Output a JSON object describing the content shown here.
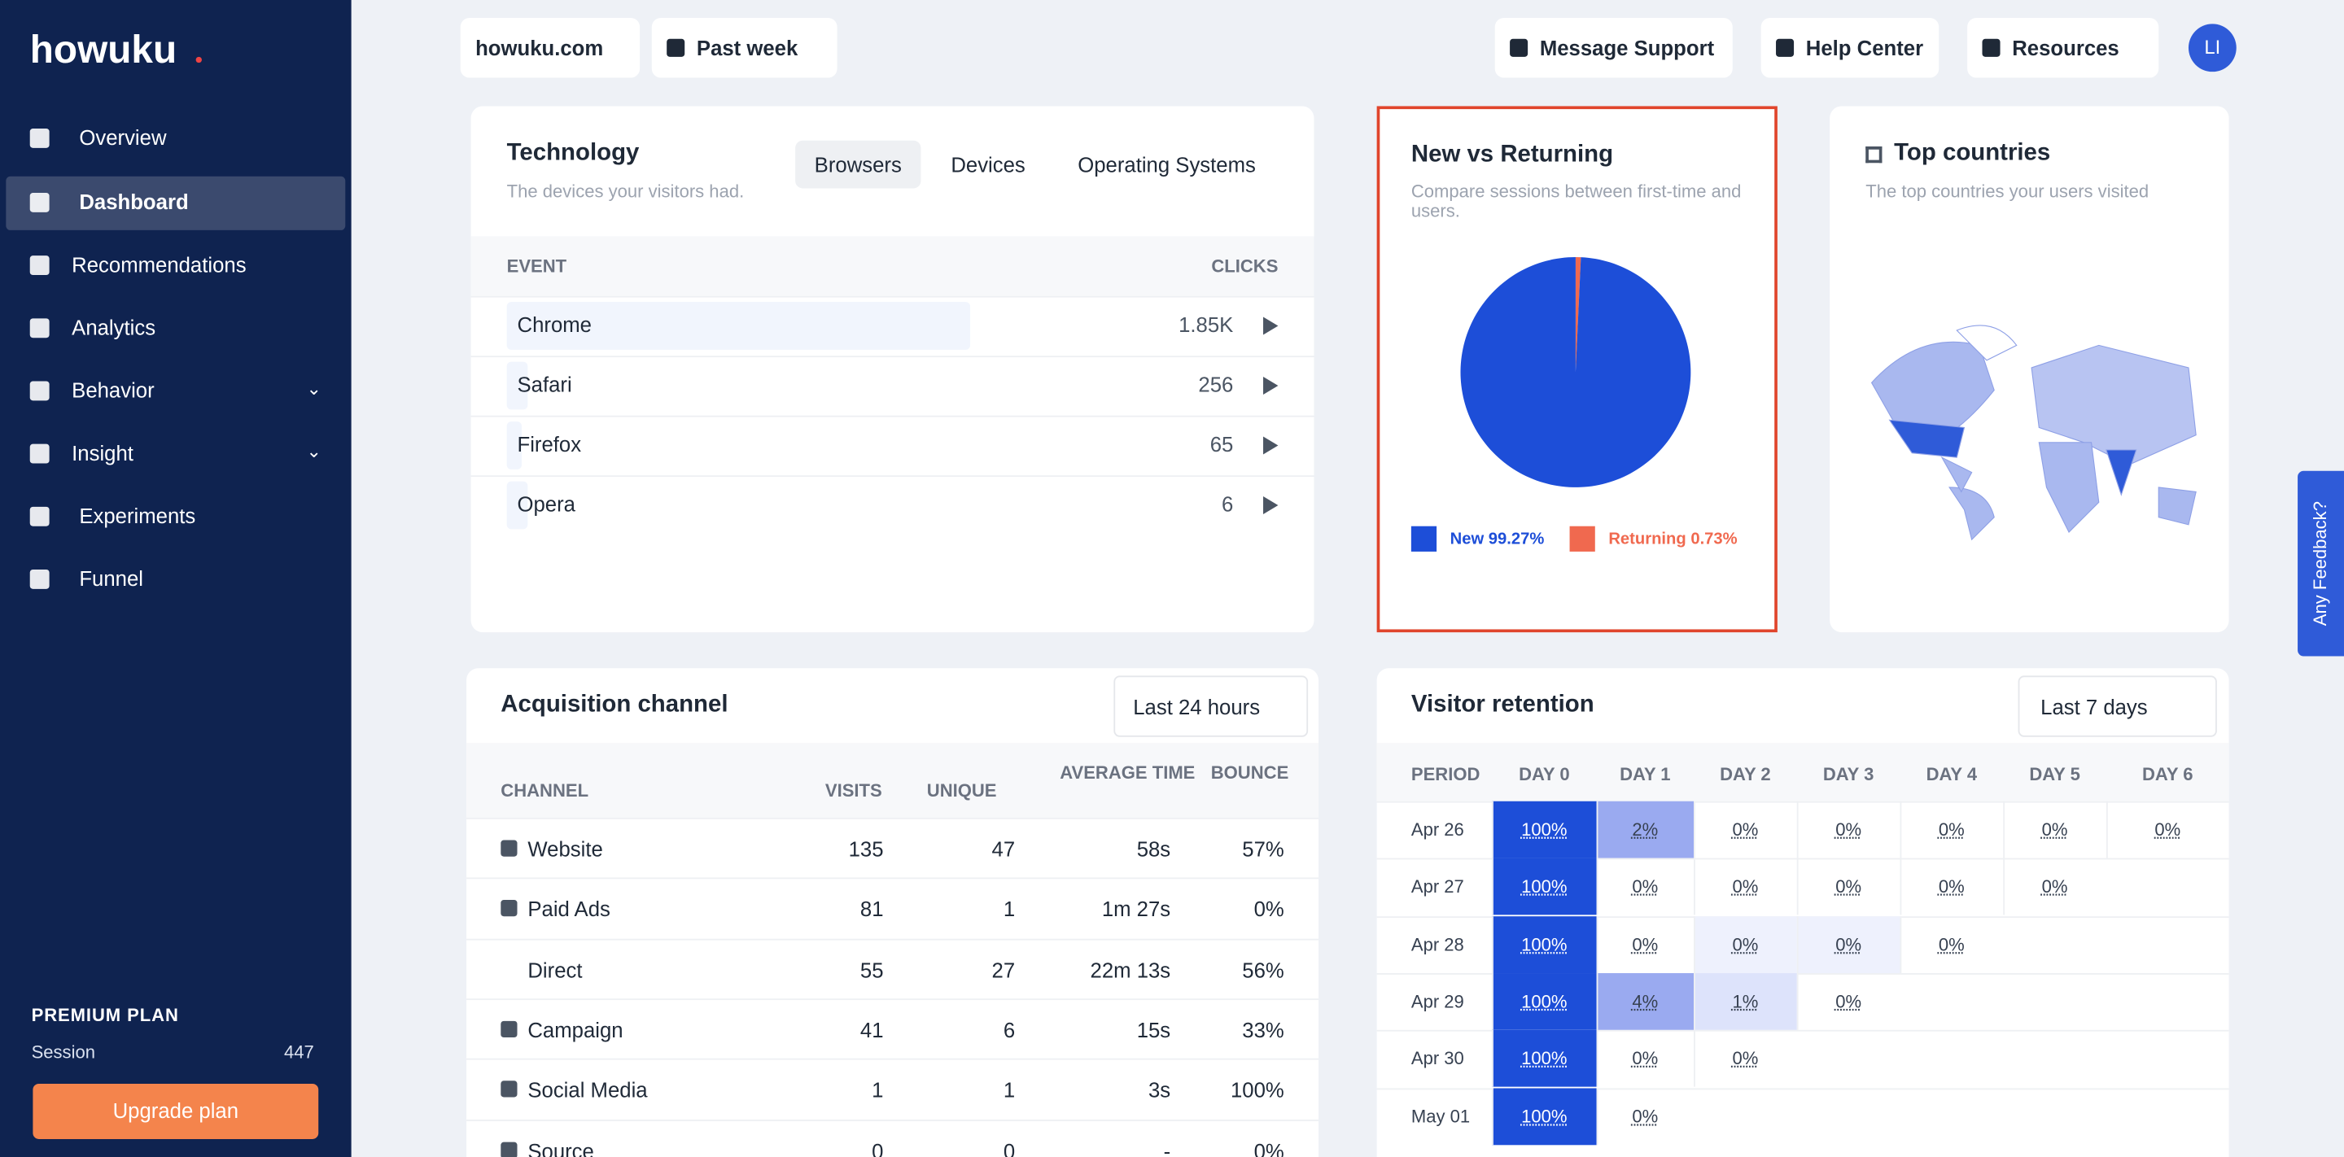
{
  "sidebar": {
    "logo": "howuku",
    "nav": [
      "Overview",
      "Dashboard",
      "Recommendations",
      "Analytics",
      "Behavior",
      "Insight",
      "Experiments",
      "Funnel"
    ],
    "plan": "PREMIUM PLAN",
    "session_label": "Session",
    "session_value": "447",
    "upgrade": "Upgrade plan"
  },
  "topbar": {
    "site": "howuku.com",
    "range": "Past week",
    "support": "Message Support",
    "help": "Help Center",
    "resources": "Resources",
    "avatar": "LI"
  },
  "technology": {
    "title": "Technology",
    "subtitle": "The devices your visitors had.",
    "tabs": [
      "Browsers",
      "Devices",
      "Operating Systems"
    ],
    "columns": [
      "EVENT",
      "CLICKS"
    ],
    "rows": [
      [
        "Chrome",
        "1.85K"
      ],
      [
        "Safari",
        "256"
      ],
      [
        "Firefox",
        "65"
      ],
      [
        "Opera",
        "6"
      ]
    ]
  },
  "new_vs_returning": {
    "title": "New vs Returning",
    "subtitle": "Compare sessions between first-time and users.",
    "chart": {
      "type": "pie",
      "values": [
        99.27,
        0.73
      ],
      "value_labels": [
        "New 99.27%",
        "Returning 0.73%"
      ],
      "colors": [
        "#1d4ed8",
        "#f0694f"
      ]
    }
  },
  "top_countries": {
    "title": "Top countries",
    "subtitle": "The top countries your users visited"
  },
  "acquisition": {
    "title": "Acquisition channel",
    "filter": "Last 24 hours",
    "columns": [
      "CHANNEL",
      "VISITS",
      "UNIQUE",
      "AVERAGE TIME",
      "BOUNCE"
    ],
    "rows": [
      [
        "Website",
        "135",
        "47",
        "58s",
        "57%"
      ],
      [
        "Paid Ads",
        "81",
        "1",
        "1m 27s",
        "0%"
      ],
      [
        "Direct",
        "55",
        "27",
        "22m 13s",
        "56%"
      ],
      [
        "Campaign",
        "41",
        "6",
        "15s",
        "33%"
      ],
      [
        "Social Media",
        "1",
        "1",
        "3s",
        "100%"
      ],
      [
        "Source",
        "0",
        "0",
        "-",
        "0%"
      ]
    ]
  },
  "retention": {
    "title": "Visitor retention",
    "filter": "Last 7 days",
    "columns": [
      "PERIOD",
      "DAY 0",
      "DAY 1",
      "DAY 2",
      "DAY 3",
      "DAY 4",
      "DAY 5",
      "DAY 6"
    ],
    "rows": [
      [
        "Apr 26",
        "100%",
        "2%",
        "0%",
        "0%",
        "0%",
        "0%",
        "0%"
      ],
      [
        "Apr 27",
        "100%",
        "0%",
        "0%",
        "0%",
        "0%",
        "0%"
      ],
      [
        "Apr 28",
        "100%",
        "0%",
        "0%",
        "0%",
        "0%"
      ],
      [
        "Apr 29",
        "100%",
        "4%",
        "1%",
        "0%"
      ],
      [
        "Apr 30",
        "100%",
        "0%",
        "0%"
      ],
      [
        "May 01",
        "100%",
        "0%"
      ]
    ]
  },
  "feedback": "Any Feedback?"
}
